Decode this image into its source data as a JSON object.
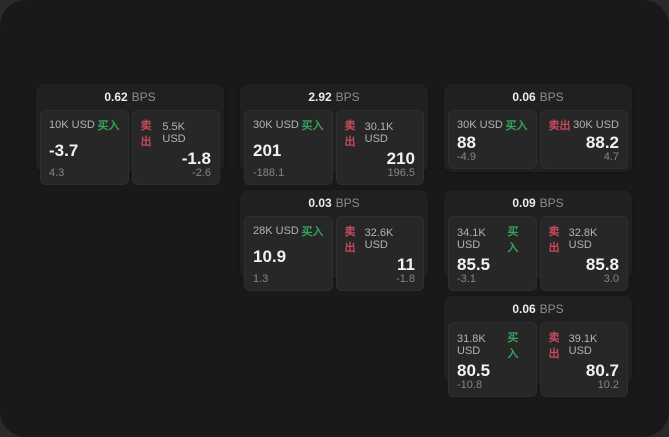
{
  "unit_label": "BPS",
  "colors": {
    "buy_green": "#35a25a",
    "sell_red": "#c44a5c",
    "window_bg": "#191919",
    "tile_bg": "#202020",
    "panel_bg": "#272727"
  },
  "cards": [
    {
      "bps_value": "0.62",
      "buy": {
        "amount": "10K USD",
        "side_label": "买入",
        "price": "-3.7",
        "delta": "4.3"
      },
      "sell": {
        "side_label": "卖出",
        "amount": "5.5K USD",
        "price": "-1.8",
        "delta": "-2.6"
      }
    },
    {
      "bps_value": "2.92",
      "buy": {
        "amount": "30K USD",
        "side_label": "买入",
        "price": "201",
        "delta": "-188.1"
      },
      "sell": {
        "side_label": "卖出",
        "amount": "30.1K USD",
        "price": "210",
        "delta": "196.5"
      }
    },
    {
      "bps_value": "0.06",
      "buy": {
        "amount": "30K USD",
        "side_label": "买入",
        "price": "88",
        "delta": "-4.9"
      },
      "sell": {
        "side_label": "卖出",
        "amount": "30K USD",
        "price": "88.2",
        "delta": "4.7"
      }
    },
    {
      "bps_value": "0.03",
      "buy": {
        "amount": "28K USD",
        "side_label": "买入",
        "price": "10.9",
        "delta": "1.3"
      },
      "sell": {
        "side_label": "卖出",
        "amount": "32.6K USD",
        "price": "11",
        "delta": "-1.8"
      }
    },
    {
      "bps_value": "0.09",
      "buy": {
        "amount": "34.1K USD",
        "side_label": "买入",
        "price": "85.5",
        "delta": "-3.1"
      },
      "sell": {
        "side_label": "卖出",
        "amount": "32.8K USD",
        "price": "85.8",
        "delta": "3.0"
      }
    },
    {
      "bps_value": "0.06",
      "buy": {
        "amount": "31.8K USD",
        "side_label": "买入",
        "price": "80.5",
        "delta": "-10.8"
      },
      "sell": {
        "side_label": "卖出",
        "amount": "39.1K USD",
        "price": "80.7",
        "delta": "10.2"
      }
    }
  ]
}
